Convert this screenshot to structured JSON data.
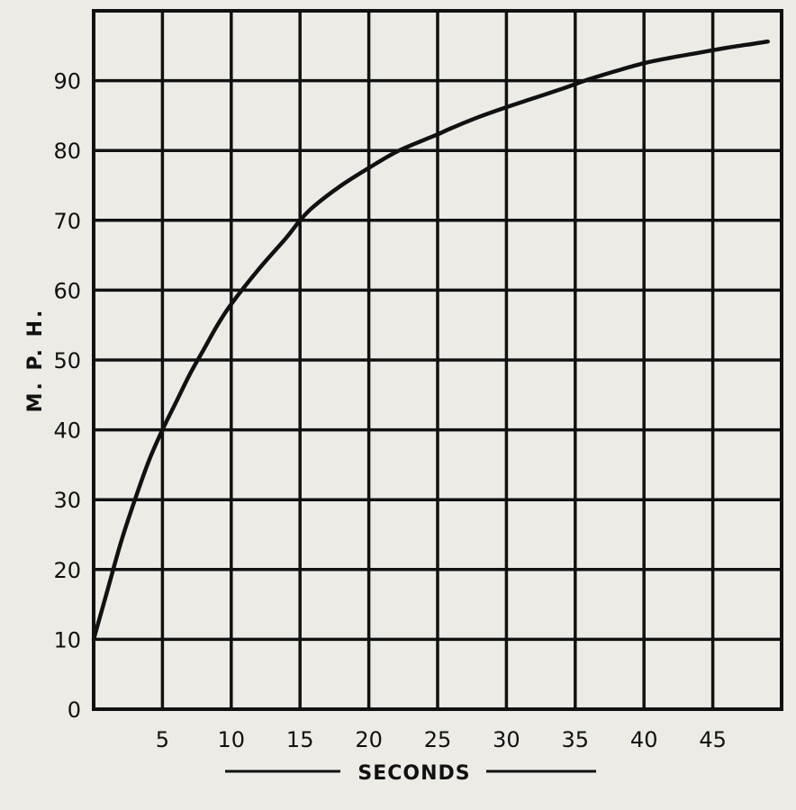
{
  "chart_data": {
    "type": "line",
    "title": "",
    "xlabel": "SECONDS",
    "ylabel": "M. P. H.",
    "xlim": [
      0,
      50
    ],
    "ylim": [
      0,
      100
    ],
    "x_ticks": [
      5,
      10,
      15,
      20,
      25,
      30,
      35,
      40,
      45
    ],
    "y_ticks": [
      0,
      10,
      20,
      30,
      40,
      50,
      60,
      70,
      80,
      90
    ],
    "grid": true,
    "legend": "none",
    "series": [
      {
        "x": [
          0,
          1,
          2,
          3,
          4,
          5,
          6,
          7,
          8,
          9,
          10,
          12,
          14,
          15,
          16,
          18,
          20,
          22,
          24,
          25,
          26,
          28,
          30,
          32,
          34,
          35,
          36,
          38,
          40,
          42,
          44,
          46,
          48,
          49
        ],
        "y": [
          10,
          17,
          24,
          30,
          35.5,
          40,
          44,
          48,
          51.5,
          55,
          58,
          63,
          67.5,
          70,
          72,
          75,
          77.5,
          79.8,
          81.5,
          82.3,
          83.2,
          84.8,
          86.2,
          87.5,
          88.8,
          89.5,
          90.2,
          91.4,
          92.5,
          93.3,
          94,
          94.7,
          95.3,
          95.6
        ]
      }
    ],
    "colors": {
      "ink": "#111111",
      "paper": "#ecebe6"
    }
  }
}
